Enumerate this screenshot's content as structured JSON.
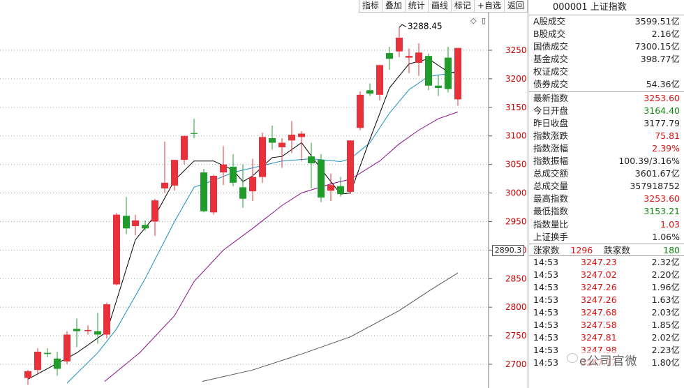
{
  "toolbar": {
    "items": [
      "指标",
      "叠加",
      "统计",
      "画线",
      "标记",
      "+自选",
      "返回"
    ]
  },
  "tools": {
    "diamond": "◇",
    "square": "▯"
  },
  "price_tag": "2890.3",
  "peak_label": "3288.45",
  "chart_data": {
    "type": "candlestick",
    "ylim": [
      2670,
      3300
    ],
    "y_ticks": [
      2700,
      2750,
      2800,
      2850,
      2900,
      2950,
      3000,
      3050,
      3100,
      3150,
      3200,
      3250
    ],
    "colors": {
      "up": "#e8313a",
      "down": "#1f9c2a",
      "ma5": "#000000",
      "ma10": "#1a8fc4",
      "ma20": "#8a0e8a",
      "ma60": "#555555"
    },
    "candles": [
      {
        "x": 40,
        "o": 2676,
        "h": 2690,
        "l": 2664,
        "c": 2688
      },
      {
        "x": 54,
        "o": 2690,
        "h": 2728,
        "l": 2682,
        "c": 2722
      },
      {
        "x": 68,
        "o": 2720,
        "h": 2728,
        "l": 2712,
        "c": 2718
      },
      {
        "x": 82,
        "o": 2710,
        "h": 2722,
        "l": 2680,
        "c": 2692
      },
      {
        "x": 96,
        "o": 2705,
        "h": 2758,
        "l": 2700,
        "c": 2752
      },
      {
        "x": 110,
        "o": 2762,
        "h": 2780,
        "l": 2730,
        "c": 2758
      },
      {
        "x": 126,
        "o": 2758,
        "h": 2768,
        "l": 2752,
        "c": 2760
      },
      {
        "x": 140,
        "o": 2758,
        "h": 2790,
        "l": 2736,
        "c": 2752
      },
      {
        "x": 153,
        "o": 2752,
        "h": 2808,
        "l": 2745,
        "c": 2805
      },
      {
        "x": 167,
        "o": 2840,
        "h": 2965,
        "l": 2838,
        "c": 2962
      },
      {
        "x": 181,
        "o": 2960,
        "h": 2993,
        "l": 2928,
        "c": 2938
      },
      {
        "x": 194,
        "o": 2942,
        "h": 2962,
        "l": 2926,
        "c": 2952
      },
      {
        "x": 208,
        "o": 2944,
        "h": 2952,
        "l": 2934,
        "c": 2938
      },
      {
        "x": 222,
        "o": 2950,
        "h": 2990,
        "l": 2925,
        "c": 2987
      },
      {
        "x": 236,
        "o": 3008,
        "h": 3090,
        "l": 3000,
        "c": 3018
      },
      {
        "x": 250,
        "o": 3013,
        "h": 3058,
        "l": 3004,
        "c": 3058
      },
      {
        "x": 264,
        "o": 3058,
        "h": 3100,
        "l": 3050,
        "c": 3100
      },
      {
        "x": 278,
        "o": 3105,
        "h": 3130,
        "l": 3096,
        "c": 3104
      },
      {
        "x": 292,
        "o": 3036,
        "h": 3042,
        "l": 2966,
        "c": 2968
      },
      {
        "x": 306,
        "o": 2966,
        "h": 3032,
        "l": 2962,
        "c": 3030
      },
      {
        "x": 320,
        "o": 3036,
        "h": 3082,
        "l": 3014,
        "c": 3050
      },
      {
        "x": 334,
        "o": 3046,
        "h": 3068,
        "l": 3012,
        "c": 3018
      },
      {
        "x": 348,
        "o": 3010,
        "h": 3050,
        "l": 2974,
        "c": 2990
      },
      {
        "x": 362,
        "o": 3003,
        "h": 3060,
        "l": 2986,
        "c": 3028
      },
      {
        "x": 376,
        "o": 3028,
        "h": 3106,
        "l": 3018,
        "c": 3098
      },
      {
        "x": 390,
        "o": 3096,
        "h": 3118,
        "l": 3076,
        "c": 3088
      },
      {
        "x": 404,
        "o": 3080,
        "h": 3096,
        "l": 3044,
        "c": 3088
      },
      {
        "x": 418,
        "o": 3092,
        "h": 3126,
        "l": 3070,
        "c": 3102
      },
      {
        "x": 432,
        "o": 3098,
        "h": 3108,
        "l": 3056,
        "c": 3104
      },
      {
        "x": 446,
        "o": 3064,
        "h": 3088,
        "l": 3008,
        "c": 3052
      },
      {
        "x": 460,
        "o": 3058,
        "h": 3068,
        "l": 2984,
        "c": 2992
      },
      {
        "x": 474,
        "o": 3004,
        "h": 3034,
        "l": 2986,
        "c": 3014
      },
      {
        "x": 488,
        "o": 3012,
        "h": 3028,
        "l": 2994,
        "c": 2998
      },
      {
        "x": 502,
        "o": 3002,
        "h": 3092,
        "l": 2998,
        "c": 3092
      },
      {
        "x": 516,
        "o": 3114,
        "h": 3178,
        "l": 3110,
        "c": 3172
      },
      {
        "x": 530,
        "o": 3180,
        "h": 3192,
        "l": 3170,
        "c": 3174
      },
      {
        "x": 544,
        "o": 3172,
        "h": 3225,
        "l": 3162,
        "c": 3224
      },
      {
        "x": 558,
        "o": 3245,
        "h": 3256,
        "l": 3216,
        "c": 3235
      },
      {
        "x": 572,
        "o": 3248,
        "h": 3290,
        "l": 3238,
        "c": 3272
      },
      {
        "x": 586,
        "o": 3237,
        "h": 3253,
        "l": 3210,
        "c": 3240
      },
      {
        "x": 600,
        "o": 3228,
        "h": 3262,
        "l": 3205,
        "c": 3246
      },
      {
        "x": 614,
        "o": 3240,
        "h": 3244,
        "l": 3180,
        "c": 3188
      },
      {
        "x": 628,
        "o": 3188,
        "h": 3206,
        "l": 3170,
        "c": 3184
      },
      {
        "x": 642,
        "o": 3237,
        "h": 3256,
        "l": 3176,
        "c": 3182
      },
      {
        "x": 656,
        "o": 3164,
        "h": 3254,
        "l": 3153,
        "c": 3254
      }
    ],
    "ma5": [
      [
        40,
        2674
      ],
      [
        110,
        2720
      ],
      [
        153,
        2757
      ],
      [
        194,
        2918
      ],
      [
        222,
        2960
      ],
      [
        250,
        3022
      ],
      [
        278,
        3056
      ],
      [
        306,
        3056
      ],
      [
        334,
        3040
      ],
      [
        348,
        3020
      ],
      [
        362,
        3030
      ],
      [
        390,
        3062
      ],
      [
        404,
        3064
      ],
      [
        432,
        3088
      ],
      [
        460,
        3042
      ],
      [
        488,
        2998
      ],
      [
        502,
        3000
      ],
      [
        530,
        3094
      ],
      [
        558,
        3184
      ],
      [
        586,
        3226
      ],
      [
        614,
        3235
      ],
      [
        642,
        3212
      ],
      [
        656,
        3210
      ]
    ],
    "ma10": [
      [
        96,
        2667
      ],
      [
        140,
        2720
      ],
      [
        167,
        2762
      ],
      [
        208,
        2850
      ],
      [
        250,
        2950
      ],
      [
        278,
        3010
      ],
      [
        306,
        3022
      ],
      [
        334,
        3036
      ],
      [
        362,
        3044
      ],
      [
        404,
        3056
      ],
      [
        446,
        3060
      ],
      [
        488,
        3055
      ],
      [
        502,
        3060
      ],
      [
        530,
        3088
      ],
      [
        558,
        3140
      ],
      [
        586,
        3181
      ],
      [
        614,
        3204
      ],
      [
        642,
        3209
      ],
      [
        656,
        3214
      ]
    ],
    "ma20": [
      [
        150,
        2670
      ],
      [
        200,
        2720
      ],
      [
        250,
        2785
      ],
      [
        278,
        2845
      ],
      [
        320,
        2900
      ],
      [
        362,
        2938
      ],
      [
        404,
        2978
      ],
      [
        432,
        3000
      ],
      [
        474,
        3016
      ],
      [
        502,
        3024
      ],
      [
        544,
        3056
      ],
      [
        572,
        3086
      ],
      [
        600,
        3110
      ],
      [
        628,
        3130
      ],
      [
        656,
        3142
      ]
    ],
    "ma60": [
      [
        290,
        2670
      ],
      [
        362,
        2690
      ],
      [
        432,
        2718
      ],
      [
        502,
        2748
      ],
      [
        572,
        2794
      ],
      [
        614,
        2828
      ],
      [
        656,
        2860
      ]
    ]
  },
  "side": {
    "title": "000001 上证指数",
    "top": [
      {
        "label": "A股成交",
        "value": "3599.51亿",
        "cls": ""
      },
      {
        "label": "B股成交",
        "value": "2.16亿",
        "cls": ""
      },
      {
        "label": "国债成交",
        "value": "7300.15亿",
        "cls": ""
      },
      {
        "label": "基金成交",
        "value": "398.77亿",
        "cls": ""
      },
      {
        "label": "权证成交",
        "value": "",
        "cls": ""
      },
      {
        "label": "债券成交",
        "value": "54.36亿",
        "cls": ""
      }
    ],
    "mid": [
      {
        "label": "最新指数",
        "value": "3253.60",
        "cls": "red"
      },
      {
        "label": "今日开盘",
        "value": "3164.40",
        "cls": "grn"
      },
      {
        "label": "昨日收盘",
        "value": "3177.79",
        "cls": ""
      },
      {
        "label": "指数涨跌",
        "value": "75.81",
        "cls": "red"
      },
      {
        "label": "指数涨幅",
        "value": "2.39%",
        "cls": "red"
      },
      {
        "label": "指数振幅",
        "value": "100.39/3.16%",
        "cls": ""
      },
      {
        "label": "总成交额",
        "value": "3601.67亿",
        "cls": ""
      },
      {
        "label": "总成交量",
        "value": "357918752",
        "cls": ""
      },
      {
        "label": "最高指数",
        "value": "3253.60",
        "cls": "red"
      },
      {
        "label": "最低指数",
        "value": "3153.21",
        "cls": "grn"
      },
      {
        "label": "指数量比",
        "value": "1.03",
        "cls": "red"
      },
      {
        "label": "上证换手",
        "value": "1.06%",
        "cls": ""
      }
    ],
    "stats": {
      "up_label": "涨家数",
      "up_value": "1296",
      "down_label": "跌家数",
      "down_value": "180"
    },
    "ticks": [
      {
        "t": "14:53",
        "p": "3247.23",
        "v": "2.32亿"
      },
      {
        "t": "14:53",
        "p": "3247.02",
        "v": "2.20亿"
      },
      {
        "t": "14:53",
        "p": "3247.26",
        "v": "1.96亿"
      },
      {
        "t": "14:53",
        "p": "3247.26",
        "v": "1.63亿"
      },
      {
        "t": "14:53",
        "p": "3247.68",
        "v": "2.03亿"
      },
      {
        "t": "14:53",
        "p": "3247.58",
        "v": "1.85亿"
      },
      {
        "t": "14:53",
        "p": "3247.81",
        "v": "2.02亿"
      },
      {
        "t": "14:53",
        "p": "3247.98",
        "v": "2.23亿"
      },
      {
        "t": "14:53",
        "p": "3247.77",
        "v": "1.80亿"
      }
    ]
  },
  "watermark": "e公司官微"
}
